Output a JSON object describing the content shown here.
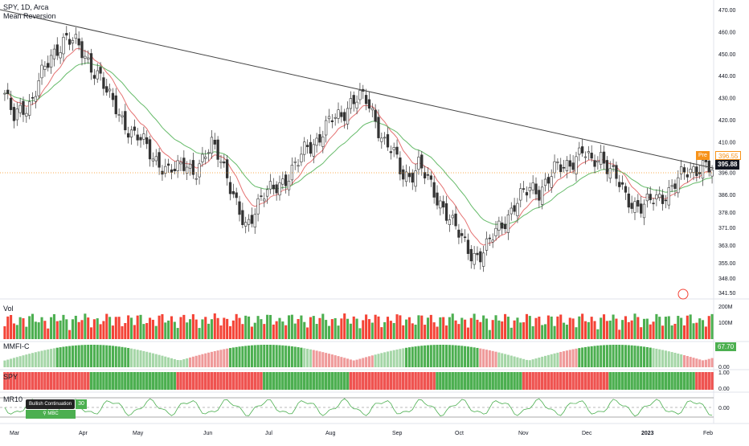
{
  "header": {
    "symbol_line": "SPY, 1D, Arca",
    "indicator_name": "Mean Reversion"
  },
  "price_axis": {
    "ticks": [
      "470.00",
      "460.00",
      "450.00",
      "440.00",
      "430.00",
      "420.00",
      "410.00",
      "403.00",
      "396.00",
      "386.00",
      "378.00",
      "371.00",
      "363.00",
      "355.00",
      "348.00",
      "341.50"
    ]
  },
  "price_tags": {
    "pre_label": "Pre",
    "pre_value": "396.55",
    "last_value": "395.88",
    "pre_color": "#f7931a",
    "last_color": "#131722"
  },
  "volume_panel": {
    "label": "Vol",
    "ticks": [
      "200M",
      "100M"
    ]
  },
  "mmfi_panel": {
    "label": "MMFI-C",
    "value": "67.70",
    "ticks": [
      "0.00"
    ],
    "value_color": "#4caf50"
  },
  "spy_panel": {
    "label": "SPY",
    "ticks": [
      "1.00",
      "0.00"
    ]
  },
  "mr_panel": {
    "label": "MR10",
    "ticks": [
      "0.00"
    ],
    "badge_text": "Bullish Continuation",
    "badge_count": "30",
    "badge_sub": "MBC"
  },
  "time_axis": {
    "ticks": [
      "Mar",
      "Apr",
      "May",
      "Jun",
      "Jul",
      "Aug",
      "Sep",
      "Oct",
      "Nov",
      "Dec",
      "2023",
      "Feb"
    ]
  },
  "colors": {
    "up": "#26a69a",
    "down": "#ef5350",
    "ema_fast": "#e57373",
    "ema_slow": "#66bb6a",
    "trend": "#444444",
    "vol_up": "#4caf50",
    "vol_down": "#f44336"
  },
  "chart_data": {
    "type": "candlestick",
    "title": "SPY, 1D, Arca",
    "ylim": [
      341.5,
      470
    ],
    "x_range": [
      "Mar",
      "Feb"
    ],
    "trendline": {
      "from": [
        "Mar",
        470
      ],
      "to": [
        "Feb",
        398
      ]
    },
    "last_price": 395.88,
    "premarket_price": 396.55,
    "closes_by_month": {
      "Mar": [
        432,
        420,
        425,
        428,
        438,
        445,
        452,
        458
      ],
      "Apr": [
        455,
        450,
        445,
        440,
        430,
        425,
        418,
        412
      ],
      "May": [
        410,
        405,
        400,
        395,
        398,
        402,
        395,
        400
      ],
      "Jun": [
        410,
        405,
        390,
        378,
        372,
        380,
        385
      ],
      "Jul": [
        388,
        392,
        395,
        400,
        408,
        410,
        415,
        420
      ],
      "Aug": [
        422,
        428,
        430,
        428,
        420,
        410,
        405,
        395
      ],
      "Sep": [
        395,
        400,
        392,
        385,
        380,
        372,
        365,
        360
      ],
      "Oct": [
        358,
        362,
        370,
        375,
        380,
        385,
        390
      ],
      "Nov": [
        388,
        392,
        398,
        400,
        402,
        405,
        400
      ],
      "Dec": [
        405,
        398,
        392,
        385,
        382,
        380,
        383
      ],
      "Jan 2023": [
        385,
        388,
        392,
        396,
        398,
        400,
        396
      ]
    },
    "volume_axis": [
      "200M",
      "100M"
    ],
    "mmfi_last": 67.7,
    "series": [
      {
        "values_ref": "closes_by_month"
      }
    ]
  }
}
